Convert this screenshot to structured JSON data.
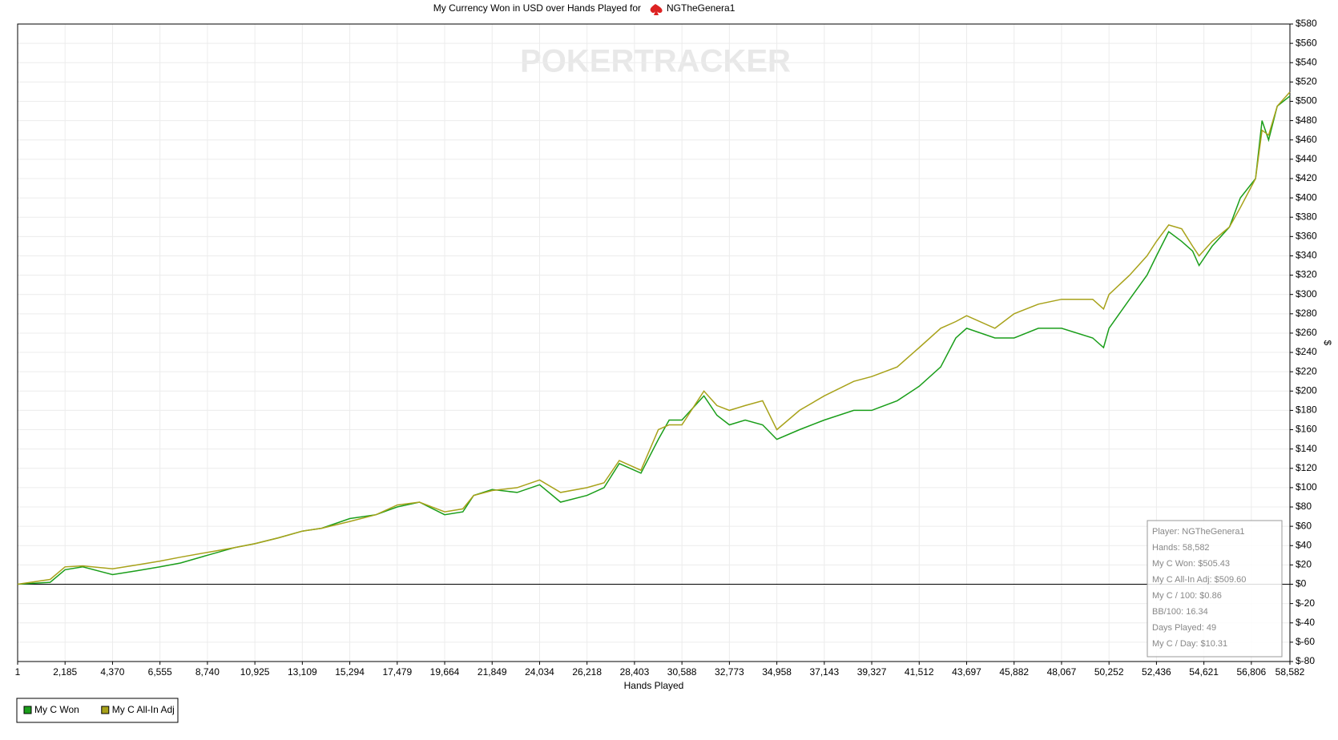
{
  "chart_data": {
    "type": "line",
    "title": "My Currency Won in USD over Hands Played for",
    "player": "NGTheGenera1",
    "watermark": "POKERTRACKER",
    "x_label": "Hands Played",
    "y_label": "$",
    "xlim": [
      1,
      58582
    ],
    "ylim": [
      -80,
      580
    ],
    "xticks": [
      1,
      {
        "value": 2185,
        "label": "2,185"
      },
      {
        "value": 4370,
        "label": "4,370"
      },
      {
        "value": 6555,
        "label": "6,555"
      },
      {
        "value": 8740,
        "label": "8,740"
      },
      {
        "value": 10925,
        "label": "10,925"
      },
      {
        "value": 13109,
        "label": "13,109"
      },
      {
        "value": 15294,
        "label": "15,294"
      },
      {
        "value": 17479,
        "label": "17,479"
      },
      {
        "value": 19664,
        "label": "19,664"
      },
      {
        "value": 21849,
        "label": "21,849"
      },
      {
        "value": 24034,
        "label": "24,034"
      },
      {
        "value": 26218,
        "label": "26,218"
      },
      {
        "value": 28403,
        "label": "28,403"
      },
      {
        "value": 30588,
        "label": "30,588"
      },
      {
        "value": 32773,
        "label": "32,773"
      },
      {
        "value": 34958,
        "label": "34,958"
      },
      {
        "value": 37143,
        "label": "37,143"
      },
      {
        "value": 39327,
        "label": "39,327"
      },
      {
        "value": 41512,
        "label": "41,512"
      },
      {
        "value": 43697,
        "label": "43,697"
      },
      {
        "value": 45882,
        "label": "45,882"
      },
      {
        "value": 48067,
        "label": "48,067"
      },
      {
        "value": 50252,
        "label": "50,252"
      },
      {
        "value": 52436,
        "label": "52,436"
      },
      {
        "value": 54621,
        "label": "54,621"
      },
      {
        "value": 56806,
        "label": "56,806"
      },
      {
        "value": 58582,
        "label": "58,582"
      }
    ],
    "yticks": [
      {
        "value": -80,
        "label": "$-80"
      },
      {
        "value": -60,
        "label": "$-60"
      },
      {
        "value": -40,
        "label": "$-40"
      },
      {
        "value": -20,
        "label": "$-20"
      },
      {
        "value": 0,
        "label": "$0"
      },
      {
        "value": 20,
        "label": "$20"
      },
      {
        "value": 40,
        "label": "$40"
      },
      {
        "value": 60,
        "label": "$60"
      },
      {
        "value": 80,
        "label": "$80"
      },
      {
        "value": 100,
        "label": "$100"
      },
      {
        "value": 120,
        "label": "$120"
      },
      {
        "value": 140,
        "label": "$140"
      },
      {
        "value": 160,
        "label": "$160"
      },
      {
        "value": 180,
        "label": "$180"
      },
      {
        "value": 200,
        "label": "$200"
      },
      {
        "value": 220,
        "label": "$220"
      },
      {
        "value": 240,
        "label": "$240"
      },
      {
        "value": 260,
        "label": "$260"
      },
      {
        "value": 280,
        "label": "$280"
      },
      {
        "value": 300,
        "label": "$300"
      },
      {
        "value": 320,
        "label": "$320"
      },
      {
        "value": 340,
        "label": "$340"
      },
      {
        "value": 360,
        "label": "$360"
      },
      {
        "value": 380,
        "label": "$380"
      },
      {
        "value": 400,
        "label": "$400"
      },
      {
        "value": 420,
        "label": "$420"
      },
      {
        "value": 440,
        "label": "$440"
      },
      {
        "value": 460,
        "label": "$460"
      },
      {
        "value": 480,
        "label": "$480"
      },
      {
        "value": 500,
        "label": "$500"
      },
      {
        "value": 520,
        "label": "$520"
      },
      {
        "value": 540,
        "label": "$540"
      },
      {
        "value": 560,
        "label": "$560"
      },
      {
        "value": 580,
        "label": "$580"
      }
    ],
    "grid": true,
    "x": [
      1,
      1500,
      2185,
      3000,
      4370,
      5500,
      6555,
      7500,
      8740,
      10000,
      10925,
      12000,
      13109,
      14000,
      15294,
      16500,
      17479,
      18500,
      19664,
      20500,
      21000,
      21849,
      23000,
      24034,
      25000,
      26218,
      27000,
      27700,
      28700,
      29500,
      30000,
      30588,
      31600,
      32200,
      32773,
      33500,
      34300,
      34958,
      36000,
      37143,
      38500,
      39327,
      40500,
      41512,
      42500,
      43200,
      43697,
      45000,
      45882,
      47000,
      48067,
      49500,
      50000,
      50252,
      51200,
      52000,
      52436,
      53000,
      53600,
      54100,
      54400,
      55000,
      55800,
      56300,
      57000,
      57300,
      57600,
      58000,
      58582
    ],
    "series": [
      {
        "name": "My C Won",
        "color": "#1a9e1a",
        "values": [
          0,
          2,
          15,
          18,
          10,
          14,
          18,
          22,
          30,
          38,
          42,
          48,
          55,
          58,
          68,
          72,
          80,
          85,
          72,
          75,
          92,
          98,
          95,
          103,
          85,
          92,
          100,
          125,
          115,
          150,
          170,
          170,
          195,
          175,
          165,
          170,
          165,
          150,
          160,
          170,
          180,
          180,
          190,
          205,
          225,
          255,
          265,
          255,
          255,
          265,
          265,
          255,
          245,
          265,
          295,
          320,
          340,
          365,
          355,
          345,
          330,
          350,
          370,
          400,
          420,
          480,
          460,
          495,
          505.43
        ]
      },
      {
        "name": "My C All-In Adj",
        "color": "#a8a21a",
        "values": [
          0,
          5,
          18,
          19,
          16,
          20,
          24,
          28,
          33,
          38,
          42,
          48,
          55,
          58,
          65,
          72,
          82,
          85,
          75,
          78,
          92,
          97,
          100,
          108,
          95,
          100,
          105,
          128,
          118,
          160,
          165,
          165,
          200,
          185,
          180,
          185,
          190,
          160,
          180,
          195,
          210,
          215,
          225,
          245,
          265,
          272,
          278,
          265,
          280,
          290,
          295,
          295,
          285,
          300,
          320,
          340,
          355,
          372,
          368,
          350,
          340,
          355,
          370,
          390,
          420,
          470,
          465,
          495,
          509.6
        ]
      }
    ],
    "legend": "bottom-left",
    "tooltip": [
      "Player: NGTheGenera1",
      "Hands: 58,582",
      "My C Won: $505.43",
      "My C All-In Adj: $509.60",
      "My C / 100: $0.86",
      "BB/100: 16.34",
      "Days Played: 49",
      "My C / Day: $10.31"
    ]
  }
}
